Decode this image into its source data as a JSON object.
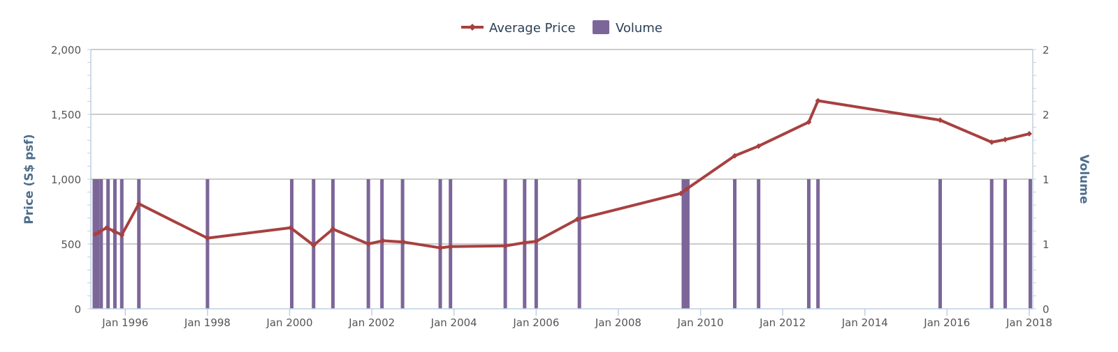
{
  "chart_data": {
    "type": "bar+line",
    "legend": {
      "placement": "top-center",
      "items": [
        {
          "label": "Average Price",
          "color": "#a84040",
          "kind": "line"
        },
        {
          "label": "Volume",
          "color": "#7c6699",
          "kind": "bar"
        }
      ]
    },
    "y_left": {
      "title": "Price (S$ psf)",
      "range": [
        0,
        2000
      ],
      "ticks": [
        0,
        500,
        1000,
        1500,
        2000
      ],
      "tick_labels": [
        "0",
        "500",
        "1,000",
        "1,500",
        "2,000"
      ]
    },
    "y_right": {
      "title": "Volume",
      "range": [
        0,
        2
      ],
      "ticks": [
        0,
        0.5,
        1,
        1.5,
        2
      ],
      "tick_labels": [
        "0",
        "1",
        "1",
        "2",
        "2"
      ]
    },
    "x_axis": {
      "range": [
        "1995-03-01",
        "2018-02-01"
      ],
      "ticks": [
        "1996-01-01",
        "1998-01-01",
        "2000-01-01",
        "2002-01-01",
        "2004-01-01",
        "2006-01-01",
        "2008-01-01",
        "2010-01-01",
        "2012-01-01",
        "2014-01-01",
        "2016-01-01",
        "2018-01-01"
      ],
      "tick_labels": [
        "Jan 1996",
        "Jan 1998",
        "Jan 2000",
        "Jan 2002",
        "Jan 2004",
        "Jan 2006",
        "Jan 2008",
        "Jan 2010",
        "Jan 2012",
        "Jan 2014",
        "Jan 2016",
        "Jan 2018"
      ]
    },
    "grid": true,
    "series": [
      {
        "name": "Average Price",
        "type": "line",
        "color": "#a84040",
        "points": [
          [
            "1995-04-10",
            575
          ],
          [
            "1995-05-10",
            590
          ],
          [
            "1995-07-20",
            625
          ],
          [
            "1995-09-20",
            600
          ],
          [
            "1995-12-01",
            570
          ],
          [
            "1996-05-01",
            810
          ],
          [
            "1998-01-01",
            545
          ],
          [
            "2000-01-10",
            625
          ],
          [
            "2000-08-01",
            490
          ],
          [
            "2001-01-20",
            615
          ],
          [
            "2001-12-01",
            500
          ],
          [
            "2002-04-10",
            525
          ],
          [
            "2002-10-10",
            515
          ],
          [
            "2003-09-01",
            470
          ],
          [
            "2003-12-01",
            480
          ],
          [
            "2005-04-01",
            485
          ],
          [
            "2005-09-20",
            510
          ],
          [
            "2006-01-01",
            520
          ],
          [
            "2007-01-01",
            690
          ],
          [
            "2009-07-10",
            890
          ],
          [
            "2009-09-01",
            925
          ],
          [
            "2010-11-01",
            1180
          ],
          [
            "2011-06-01",
            1255
          ],
          [
            "2012-08-20",
            1440
          ],
          [
            "2012-11-10",
            1605
          ],
          [
            "2015-11-01",
            1455
          ],
          [
            "2017-02-01",
            1285
          ],
          [
            "2017-06-01",
            1305
          ],
          [
            "2018-01-01",
            1350
          ]
        ]
      },
      {
        "name": "Volume",
        "type": "bar",
        "color": "#7c6699",
        "points": [
          [
            "1995-04-01",
            1
          ],
          [
            "1995-05-01",
            1
          ],
          [
            "1995-06-01",
            1
          ],
          [
            "1995-08-01",
            1
          ],
          [
            "1995-10-01",
            1
          ],
          [
            "1995-12-01",
            1
          ],
          [
            "1996-05-01",
            1
          ],
          [
            "1998-01-01",
            1
          ],
          [
            "2000-01-20",
            1
          ],
          [
            "2000-08-01",
            1
          ],
          [
            "2001-01-20",
            1
          ],
          [
            "2001-12-01",
            1
          ],
          [
            "2002-04-01",
            1
          ],
          [
            "2002-10-01",
            1
          ],
          [
            "2003-09-01",
            1
          ],
          [
            "2003-12-01",
            1
          ],
          [
            "2005-04-01",
            1
          ],
          [
            "2005-09-20",
            1
          ],
          [
            "2006-01-01",
            1
          ],
          [
            "2007-01-20",
            1
          ],
          [
            "2009-08-01",
            1
          ],
          [
            "2009-08-20",
            1
          ],
          [
            "2009-09-10",
            1
          ],
          [
            "2010-11-01",
            1
          ],
          [
            "2011-06-01",
            1
          ],
          [
            "2012-08-20",
            1
          ],
          [
            "2012-11-10",
            1
          ],
          [
            "2015-11-01",
            1
          ],
          [
            "2017-02-01",
            1
          ],
          [
            "2017-06-01",
            1
          ],
          [
            "2018-01-10",
            1
          ]
        ]
      }
    ]
  }
}
